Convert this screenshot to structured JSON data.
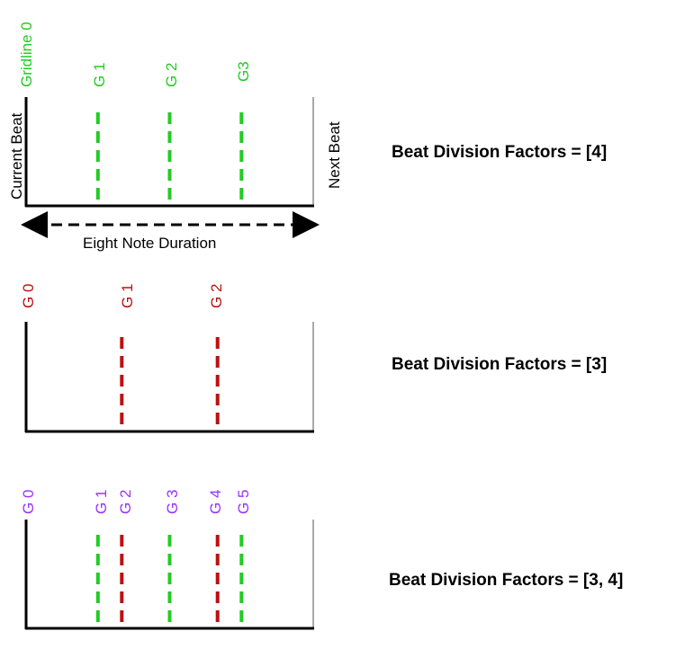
{
  "colors": {
    "green": "#22cc22",
    "red": "#bb1111",
    "purple": "#9933ff",
    "axis": "#000000",
    "next_beat_edge": "#aaaaaa"
  },
  "panels": [
    {
      "label_color": "green",
      "gridline_labels": [
        "Gridline 0",
        "G 1",
        "G 2",
        "G3"
      ],
      "gridlines": [
        {
          "position": 0.25,
          "color": "green"
        },
        {
          "position": 0.5,
          "color": "green"
        },
        {
          "position": 0.75,
          "color": "green"
        }
      ],
      "factor_label": "Beat Division Factors = [4]"
    },
    {
      "label_color": "red",
      "gridline_labels": [
        "G 0",
        "G 1",
        "G 2"
      ],
      "gridlines": [
        {
          "position": 0.3333,
          "color": "red"
        },
        {
          "position": 0.6667,
          "color": "red"
        }
      ],
      "factor_label": "Beat Division Factors = [3]"
    },
    {
      "label_color": "purple",
      "gridline_labels": [
        "G 0",
        "G 1",
        "G 2",
        "G 3",
        "G 4",
        "G 5"
      ],
      "gridlines": [
        {
          "position": 0.25,
          "color": "green"
        },
        {
          "position": 0.3333,
          "color": "red"
        },
        {
          "position": 0.5,
          "color": "green"
        },
        {
          "position": 0.6667,
          "color": "red"
        },
        {
          "position": 0.75,
          "color": "green"
        }
      ],
      "factor_label": "Beat Division Factors = [3, 4]"
    }
  ],
  "annotations": {
    "current_beat": "Current Beat",
    "next_beat": "Next Beat",
    "duration": "Eight Note Duration"
  }
}
